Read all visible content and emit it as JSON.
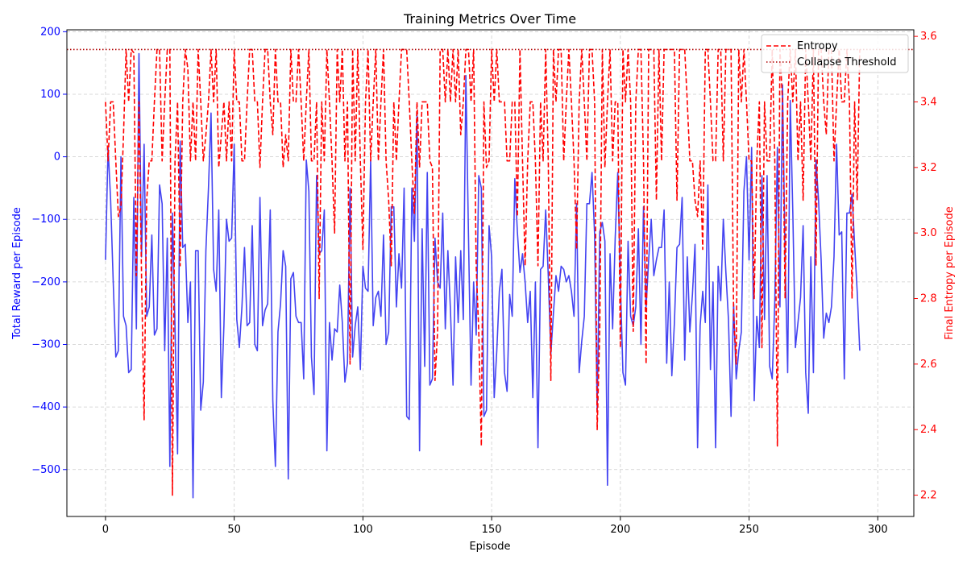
{
  "chart_data": {
    "type": "line",
    "title": "Training Metrics Over Time",
    "xlabel": "Episode",
    "ylabel_left": "Total Reward per Episode",
    "ylabel_right": "Final Entropy per Episode",
    "xlim": [
      -15,
      314
    ],
    "ylim_left": [
      -575,
      203
    ],
    "ylim_right": [
      2.135,
      3.62
    ],
    "xticks": [
      0,
      50,
      100,
      150,
      200,
      250,
      300
    ],
    "yticks_left": [
      200,
      100,
      0,
      -100,
      -200,
      -300,
      -400,
      -500
    ],
    "yticks_right": [
      3.6,
      3.4,
      3.2,
      3.0,
      2.8,
      2.6,
      2.4,
      2.2
    ],
    "grid": true,
    "legend_position": "top-right",
    "colors": {
      "reward": "#2323ee",
      "entropy": "#ff0000",
      "threshold": "#b00000",
      "left_axis": "#0000ff",
      "right_axis": "#ff0000"
    },
    "series": [
      {
        "name": "Total Reward per Episode",
        "axis": "left",
        "style": "solid",
        "x_start": 0,
        "values": [
          -165,
          15,
          -70,
          -200,
          -320,
          -310,
          0,
          -255,
          -270,
          -345,
          -340,
          -65,
          -275,
          165,
          -160,
          20,
          -255,
          -240,
          -125,
          -285,
          -275,
          -45,
          -75,
          -310,
          -130,
          -495,
          -90,
          -270,
          -475,
          25,
          -145,
          -140,
          -265,
          -200,
          -545,
          -150,
          -150,
          -405,
          -360,
          -150,
          -50,
          70,
          -180,
          -215,
          -85,
          -385,
          -270,
          -100,
          -135,
          -130,
          20,
          -260,
          -305,
          -240,
          -145,
          -270,
          -265,
          -110,
          -300,
          -310,
          -65,
          -270,
          -245,
          -235,
          -85,
          -390,
          -495,
          -280,
          -235,
          -150,
          -175,
          -515,
          -195,
          -185,
          -255,
          -265,
          -265,
          -355,
          -5,
          -55,
          -320,
          -380,
          -30,
          -155,
          -150,
          -85,
          -470,
          -265,
          -325,
          -275,
          -280,
          -205,
          -265,
          -360,
          -330,
          -50,
          -320,
          -270,
          -240,
          -340,
          -175,
          -210,
          -215,
          -5,
          -270,
          -225,
          -215,
          -255,
          -125,
          -300,
          -280,
          -80,
          -80,
          -240,
          -155,
          -210,
          -50,
          -415,
          -420,
          -50,
          -135,
          70,
          -470,
          -115,
          -335,
          -25,
          -365,
          -355,
          -130,
          -200,
          -210,
          -90,
          -275,
          -150,
          -245,
          -365,
          -160,
          -265,
          -150,
          -260,
          130,
          -125,
          -365,
          -200,
          -285,
          -30,
          -50,
          -415,
          -405,
          -110,
          -160,
          -385,
          -310,
          -215,
          -180,
          -345,
          -375,
          -220,
          -255,
          -35,
          -120,
          -185,
          -155,
          -200,
          -265,
          -215,
          -385,
          -200,
          -465,
          -180,
          -175,
          -85,
          -190,
          -315,
          -250,
          -190,
          -215,
          -175,
          -180,
          -200,
          -190,
          -215,
          -255,
          -75,
          -345,
          -295,
          -255,
          -75,
          -75,
          -25,
          -125,
          -405,
          -120,
          -105,
          -135,
          -525,
          -155,
          -275,
          -130,
          -25,
          -200,
          -345,
          -365,
          -135,
          -255,
          -270,
          -240,
          -115,
          -300,
          -80,
          -240,
          -165,
          -100,
          -190,
          -165,
          -145,
          -145,
          -85,
          -330,
          -200,
          -350,
          -265,
          -145,
          -140,
          -65,
          -325,
          -160,
          -280,
          -220,
          -140,
          -465,
          -270,
          -215,
          -265,
          -45,
          -340,
          -200,
          -465,
          -175,
          -230,
          -100,
          -185,
          -260,
          -415,
          -235,
          -355,
          -310,
          -280,
          -55,
          0,
          -165,
          15,
          -390,
          -255,
          -305,
          -30,
          -260,
          -30,
          -335,
          -355,
          -230,
          15,
          -240,
          115,
          -160,
          -345,
          90,
          -90,
          -305,
          -265,
          -225,
          -110,
          -345,
          -410,
          -160,
          -345,
          -5,
          -70,
          -165,
          -290,
          -250,
          -265,
          -240,
          -160,
          20,
          -125,
          -120,
          -355,
          -90,
          -90,
          -60,
          -140,
          -215,
          -310
        ]
      },
      {
        "name": "Entropy",
        "axis": "right",
        "style": "dashed",
        "x_start": 0,
        "values": [
          3.4,
          3.22,
          3.4,
          3.4,
          3.22,
          3.05,
          3.08,
          3.3,
          3.56,
          3.4,
          3.56,
          3.55,
          2.87,
          3.4,
          2.87,
          2.43,
          3.1,
          3.22,
          3.22,
          3.4,
          3.56,
          3.56,
          3.22,
          3.4,
          3.56,
          3.56,
          2.2,
          3.22,
          3.4,
          2.9,
          3.4,
          3.56,
          3.5,
          3.22,
          3.4,
          3.22,
          3.56,
          3.4,
          3.22,
          3.3,
          3.4,
          3.56,
          3.4,
          3.56,
          3.2,
          3.3,
          3.4,
          3.22,
          3.4,
          3.22,
          3.56,
          3.4,
          3.4,
          3.22,
          3.22,
          3.4,
          3.56,
          3.56,
          3.4,
          3.4,
          3.2,
          3.4,
          3.56,
          3.56,
          3.4,
          3.3,
          3.56,
          3.4,
          3.4,
          3.2,
          3.3,
          3.22,
          3.56,
          3.4,
          3.4,
          3.56,
          3.4,
          3.22,
          3.4,
          3.56,
          3.22,
          3.22,
          3.4,
          2.8,
          3.4,
          3.22,
          3.56,
          3.4,
          3.22,
          3.0,
          3.56,
          3.4,
          3.56,
          3.22,
          3.4,
          2.6,
          3.56,
          3.22,
          3.56,
          3.22,
          2.95,
          3.4,
          3.56,
          3.22,
          3.4,
          3.56,
          3.22,
          3.4,
          3.56,
          3.22,
          3.1,
          2.9,
          3.4,
          3.22,
          3.4,
          3.56,
          3.56,
          3.56,
          3.4,
          3.22,
          3.06,
          3.4,
          3.2,
          3.4,
          3.4,
          3.4,
          3.22,
          3.2,
          2.55,
          2.7,
          3.56,
          3.56,
          3.4,
          3.56,
          3.4,
          3.56,
          3.4,
          3.56,
          3.3,
          3.4,
          3.56,
          3.56,
          3.4,
          3.56,
          2.9,
          2.7,
          2.35,
          3.4,
          3.2,
          3.22,
          3.56,
          3.4,
          3.56,
          3.4,
          3.4,
          3.4,
          3.22,
          3.22,
          3.4,
          3.4,
          3.05,
          3.56,
          3.22,
          2.9,
          3.22,
          3.4,
          3.4,
          3.22,
          2.9,
          3.4,
          3.22,
          3.56,
          3.22,
          2.55,
          3.56,
          3.4,
          3.56,
          3.56,
          3.22,
          3.4,
          3.56,
          3.4,
          3.22,
          2.95,
          3.4,
          3.56,
          3.4,
          3.22,
          3.56,
          3.56,
          3.4,
          2.4,
          2.7,
          3.56,
          3.2,
          3.4,
          3.56,
          3.22,
          3.4,
          3.4,
          2.65,
          3.56,
          3.4,
          3.56,
          3.4,
          2.7,
          3.4,
          3.56,
          3.56,
          3.22,
          2.6,
          3.56,
          3.56,
          3.56,
          3.1,
          3.56,
          3.22,
          3.56,
          3.56,
          3.56,
          3.56,
          3.56,
          3.1,
          3.56,
          3.56,
          3.56,
          3.4,
          3.22,
          3.22,
          3.1,
          3.05,
          3.22,
          2.95,
          3.56,
          3.56,
          3.4,
          3.22,
          3.22,
          3.56,
          3.56,
          3.22,
          3.56,
          3.56,
          3.56,
          2.75,
          2.6,
          3.56,
          3.4,
          3.56,
          3.4,
          3.22,
          3.22,
          2.8,
          3.22,
          3.4,
          2.65,
          3.4,
          3.22,
          3.22,
          3.56,
          3.22,
          2.35,
          3.56,
          3.4,
          2.8,
          3.4,
          3.56,
          3.4,
          3.56,
          3.22,
          3.4,
          3.1,
          3.56,
          3.4,
          3.22,
          3.56,
          2.9,
          3.56,
          3.56,
          3.4,
          3.3,
          3.56,
          3.56,
          3.22,
          3.4,
          3.56,
          3.4,
          3.4,
          3.56,
          3.4,
          2.8,
          3.4,
          3.1,
          3.56
        ]
      },
      {
        "name": "Collapse Threshold",
        "axis": "right",
        "style": "dotted",
        "value": 3.56
      }
    ]
  }
}
